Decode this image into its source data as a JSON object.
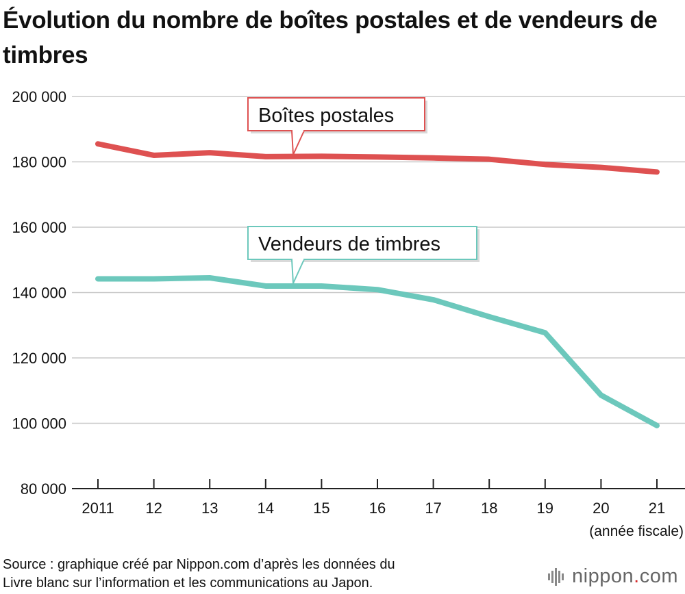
{
  "title": "Évolution du nombre de boîtes postales et de vendeurs de timbres",
  "source": [
    "Source : graphique créé par Nippon.com d’après les données du",
    "Livre blanc sur l’information et les communications au Japon."
  ],
  "logo": {
    "name": "nippon",
    "dot": ".",
    "suffix": "com",
    "icon": "sound-bars-icon"
  },
  "chart_data": {
    "type": "line",
    "title": "Évolution du nombre de boîtes postales et de vendeurs de timbres",
    "xlabel": "(année fiscale)",
    "ylabel": "",
    "categories": [
      "2011",
      "12",
      "13",
      "14",
      "15",
      "16",
      "17",
      "18",
      "19",
      "20",
      "21"
    ],
    "y_ticks": [
      "80 000",
      "100 000",
      "120 000",
      "140 000",
      "160 000",
      "180 000",
      "200 000"
    ],
    "ylim": [
      80000,
      200000
    ],
    "grid": true,
    "series": [
      {
        "name": "Boîtes postales",
        "color": "#de5151",
        "values": [
          185500,
          182000,
          182800,
          181600,
          181700,
          181500,
          181200,
          180800,
          179200,
          178300,
          176900
        ]
      },
      {
        "name": "Vendeurs de timbres",
        "color": "#6cc8bc",
        "values": [
          144200,
          144200,
          144500,
          142000,
          142000,
          140900,
          137800,
          132600,
          127700,
          108600,
          99300
        ]
      }
    ]
  }
}
